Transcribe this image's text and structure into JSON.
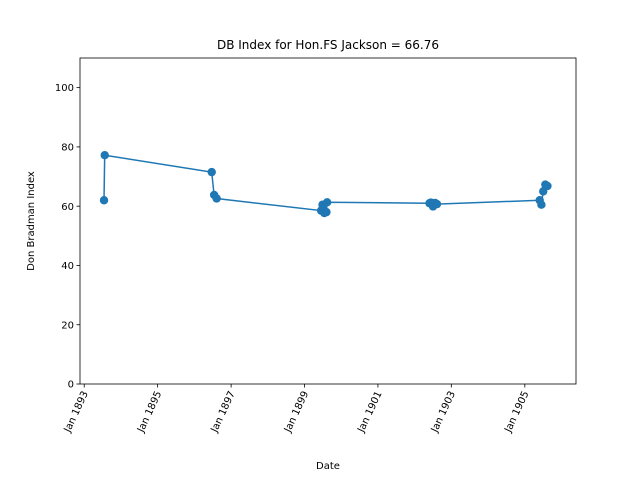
{
  "chart_data": {
    "type": "line",
    "title": "DB Index for Hon.FS Jackson = 66.76",
    "xlabel": "Date",
    "ylabel": "Don Bradman Index",
    "ylim": [
      0,
      110
    ],
    "xlim": [
      "1892-11-20",
      "1906-05-25"
    ],
    "yticks": [
      0,
      20,
      40,
      60,
      80,
      100
    ],
    "xticks": [
      {
        "date": "1893-01-01",
        "label": "Jan 1893"
      },
      {
        "date": "1895-01-01",
        "label": "Jan 1895"
      },
      {
        "date": "1897-01-01",
        "label": "Jan 1897"
      },
      {
        "date": "1899-01-01",
        "label": "Jan 1899"
      },
      {
        "date": "1901-01-01",
        "label": "Jan 1901"
      },
      {
        "date": "1903-01-01",
        "label": "Jan 1903"
      },
      {
        "date": "1905-01-01",
        "label": "Jan 1905"
      }
    ],
    "color": "#1f77b4",
    "grid": false,
    "legend": "none",
    "series": [
      {
        "points": [
          {
            "x": "1893-07-17",
            "y": 62.0
          },
          {
            "x": "1893-07-24",
            "y": 77.2
          },
          {
            "x": "1896-06-22",
            "y": 71.5
          },
          {
            "x": "1896-07-16",
            "y": 63.8
          },
          {
            "x": "1896-08-10",
            "y": 62.6
          },
          {
            "x": "1899-06-15",
            "y": 58.5
          },
          {
            "x": "1899-06-29",
            "y": 60.5
          },
          {
            "x": "1899-07-03",
            "y": 59.6
          },
          {
            "x": "1899-07-10",
            "y": 58.3
          },
          {
            "x": "1899-07-17",
            "y": 57.7
          },
          {
            "x": "1899-08-07",
            "y": 58.0
          },
          {
            "x": "1899-08-14",
            "y": 61.3
          },
          {
            "x": "1902-05-29",
            "y": 61.0
          },
          {
            "x": "1902-06-12",
            "y": 61.2
          },
          {
            "x": "1902-07-03",
            "y": 59.9
          },
          {
            "x": "1902-07-24",
            "y": 61.1
          },
          {
            "x": "1902-08-11",
            "y": 60.7
          },
          {
            "x": "1905-05-29",
            "y": 62.0
          },
          {
            "x": "1905-06-15",
            "y": 60.5
          },
          {
            "x": "1905-07-03",
            "y": 65.0
          },
          {
            "x": "1905-07-24",
            "y": 67.3
          },
          {
            "x": "1905-08-14",
            "y": 66.8
          }
        ]
      }
    ]
  }
}
